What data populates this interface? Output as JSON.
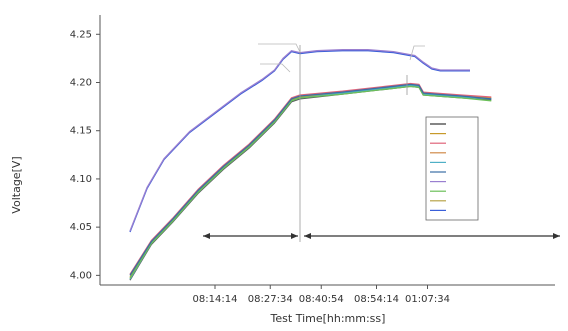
{
  "chart_data": {
    "type": "line",
    "title": "",
    "xlabel": "Test Time[hh:mm:ss]",
    "ylabel": "Voltage[V]",
    "xlim": [
      0,
      100
    ],
    "ylim": [
      3.99,
      4.27
    ],
    "grid": false,
    "legend_position": "right",
    "y_ticks": [
      4.0,
      4.05,
      4.1,
      4.15,
      4.2,
      4.25
    ],
    "y_tick_labels": [
      "4.00",
      "4.05",
      "4.10",
      "4.15",
      "4.20",
      "4.25"
    ],
    "x_ticks": [
      20,
      33,
      45,
      58,
      70
    ],
    "x_tick_labels": [
      "08:14:14",
      "08:27:34",
      "08:40:54",
      "08:54:14",
      "01:07:34"
    ],
    "legend_labels": [
      "",
      "",
      "",
      "",
      "",
      "",
      "",
      "",
      "",
      ""
    ],
    "series": [
      {
        "color": "#3a5fd9",
        "x": [
          0,
          4,
          8,
          14,
          20,
          26,
          31,
          34,
          36,
          38,
          40,
          44,
          50,
          56,
          62,
          67,
          69,
          71,
          73,
          75,
          80
        ],
        "values": [
          4.045,
          4.09,
          4.12,
          4.148,
          4.168,
          4.188,
          4.202,
          4.212,
          4.224,
          4.232,
          4.23,
          4.232,
          4.233,
          4.233,
          4.231,
          4.227,
          4.22,
          4.214,
          4.212,
          4.212,
          4.212
        ]
      },
      {
        "color": "#9a7fd0",
        "x": [
          0,
          4,
          8,
          14,
          20,
          26,
          31,
          34,
          36,
          38,
          40,
          44,
          50,
          56,
          62,
          67,
          69,
          71,
          73,
          75,
          80
        ],
        "values": [
          4.046,
          4.091,
          4.121,
          4.149,
          4.169,
          4.189,
          4.203,
          4.213,
          4.225,
          4.233,
          4.231,
          4.233,
          4.234,
          4.234,
          4.232,
          4.228,
          4.221,
          4.215,
          4.213,
          4.213,
          4.213
        ]
      },
      {
        "color": "#5a5a5a",
        "x": [
          0,
          5,
          10,
          16,
          22,
          28,
          34,
          38,
          40,
          50,
          60,
          66,
          68,
          69,
          72,
          78,
          85
        ],
        "values": [
          3.995,
          4.032,
          4.055,
          4.085,
          4.11,
          4.132,
          4.158,
          4.18,
          4.183,
          4.188,
          4.193,
          4.196,
          4.195,
          4.187,
          4.186,
          4.184,
          4.182
        ]
      },
      {
        "color": "#c79a2a",
        "x": [
          0,
          5,
          10,
          16,
          22,
          28,
          34,
          38,
          40,
          50,
          60,
          66,
          68,
          69,
          72,
          78,
          85
        ],
        "values": [
          3.998,
          4.034,
          4.057,
          4.087,
          4.112,
          4.134,
          4.16,
          4.182,
          4.185,
          4.19,
          4.195,
          4.198,
          4.197,
          4.189,
          4.188,
          4.186,
          4.184
        ]
      },
      {
        "color": "#e0647a",
        "x": [
          0,
          5,
          10,
          16,
          22,
          28,
          34,
          38,
          40,
          50,
          60,
          66,
          68,
          69,
          72,
          78,
          85
        ],
        "values": [
          4.001,
          4.036,
          4.059,
          4.089,
          4.114,
          4.136,
          4.162,
          4.184,
          4.187,
          4.191,
          4.196,
          4.199,
          4.198,
          4.19,
          4.189,
          4.187,
          4.185
        ]
      },
      {
        "color": "#4fb0c6",
        "x": [
          0,
          5,
          10,
          16,
          22,
          28,
          34,
          38,
          40,
          50,
          60,
          66,
          68,
          69,
          72,
          78,
          85
        ],
        "values": [
          3.996,
          4.033,
          4.056,
          4.086,
          4.111,
          4.133,
          4.159,
          4.181,
          4.184,
          4.189,
          4.194,
          4.197,
          4.196,
          4.188,
          4.187,
          4.185,
          4.183
        ]
      },
      {
        "color": "#6bbf59",
        "x": [
          0,
          5,
          10,
          16,
          22,
          28,
          34,
          38,
          40,
          50,
          60,
          66,
          68,
          69,
          72,
          78,
          85
        ],
        "values": [
          3.997,
          4.033,
          4.056,
          4.086,
          4.111,
          4.133,
          4.159,
          4.181,
          4.184,
          4.188,
          4.193,
          4.196,
          4.195,
          4.187,
          4.186,
          4.184,
          4.181
        ]
      },
      {
        "color": "#3b6ea5",
        "x": [
          0,
          5,
          10,
          16,
          22,
          28,
          34,
          38,
          40,
          50,
          60,
          66,
          68,
          69,
          72,
          78,
          85
        ],
        "values": [
          4.0,
          4.035,
          4.058,
          4.088,
          4.113,
          4.135,
          4.161,
          4.183,
          4.186,
          4.19,
          4.195,
          4.198,
          4.197,
          4.189,
          4.188,
          4.186,
          4.183
        ]
      }
    ],
    "annotations": {
      "top_left": "",
      "second_left": "",
      "right": "",
      "bottom_left": "",
      "bottom_right": ""
    }
  }
}
